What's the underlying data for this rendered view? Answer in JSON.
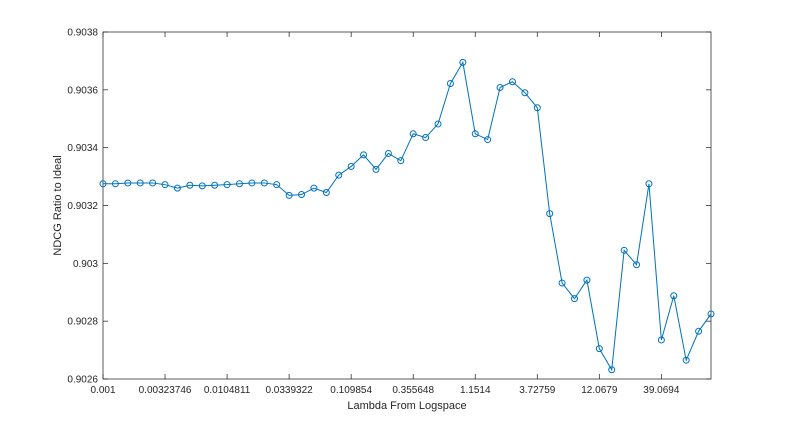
{
  "chart_data": {
    "type": "line",
    "title": "",
    "xlabel": "Lambda From Logspace",
    "ylabel": "NDCG Ratio to Ideal",
    "x_scale": "log",
    "xlim": [
      0.001,
      100
    ],
    "ylim": [
      0.9026,
      0.9038
    ],
    "grid": false,
    "legend": "none",
    "line_color": "#0072BD",
    "marker": "circle",
    "x_tick_labels": [
      "0.001",
      "0.00323746",
      "0.0104811",
      "0.0339322",
      "0.109854",
      "0.355648",
      "1.1514",
      "3.72759",
      "12.0679",
      "39.0694"
    ],
    "x_tick_values": [
      0.001,
      0.00323746,
      0.0104811,
      0.0339322,
      0.109854,
      0.355648,
      1.1514,
      3.72759,
      12.0679,
      39.0694
    ],
    "y_tick_labels": [
      "0.9026",
      "0.9028",
      "0.903",
      "0.9032",
      "0.9034",
      "0.9036",
      "0.9038"
    ],
    "y_tick_values": [
      0.9026,
      0.9028,
      0.903,
      0.9032,
      0.9034,
      0.9036,
      0.9038
    ],
    "series": [
      {
        "x": [
          0.001,
          0.00126486,
          0.00159986,
          0.00202359,
          0.00255955,
          0.00323746,
          0.00409492,
          0.00517947,
          0.00655129,
          0.00828643,
          0.0104811,
          0.0132571,
          0.0167683,
          0.0212095,
          0.026827,
          0.0339322,
          0.0429193,
          0.0542868,
          0.0686649,
          0.0868511,
          0.109854,
          0.13895,
          0.175751,
          0.2223,
          0.281177,
          0.355648,
          0.449843,
          0.568987,
          0.719686,
          0.910298,
          1.1514,
          1.45635,
          1.84207,
          2.32995,
          2.94705,
          3.72759,
          4.71487,
          5.96362,
          7.54312,
          9.54095,
          12.0679,
          15.2642,
          19.307,
          24.4205,
          30.8884,
          39.0694,
          49.4171,
          62.5055,
          79.0604,
          100.0
        ],
        "y": [
          0.903275,
          0.903275,
          0.903278,
          0.903278,
          0.903278,
          0.903272,
          0.90326,
          0.90327,
          0.903268,
          0.90327,
          0.903272,
          0.903275,
          0.903278,
          0.903278,
          0.903272,
          0.903235,
          0.903238,
          0.90326,
          0.903245,
          0.903305,
          0.903335,
          0.903375,
          0.903325,
          0.90338,
          0.903355,
          0.903448,
          0.903435,
          0.903482,
          0.903622,
          0.903695,
          0.903448,
          0.903428,
          0.903608,
          0.903628,
          0.90359,
          0.903538,
          0.903172,
          0.902932,
          0.902878,
          0.902942,
          0.902705,
          0.902632,
          0.903045,
          0.902995,
          0.903275,
          0.902735,
          0.902888,
          0.902665,
          0.902765,
          0.902825
        ]
      }
    ]
  }
}
